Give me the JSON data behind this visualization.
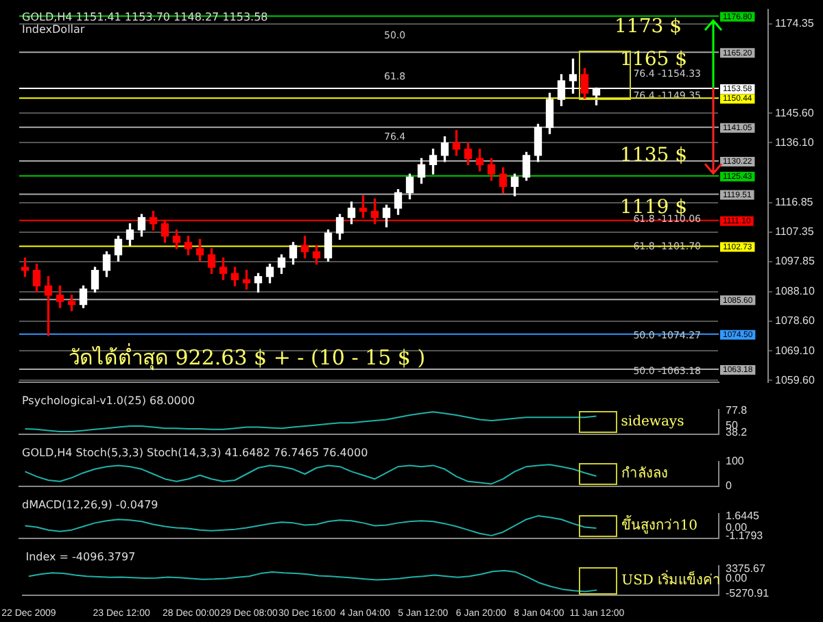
{
  "chart_data": [
    {
      "type": "candlestick",
      "title": "GOLD,H4 1151.41 1153.70 1148.27 1153.58",
      "subtitle": "IndexDollar",
      "categories": [
        "22 Dec 2009",
        null,
        null,
        null,
        null,
        null,
        null,
        null,
        "23 Dec 12:00",
        null,
        null,
        null,
        null,
        null,
        "28 Dec 00:00",
        null,
        null,
        null,
        null,
        "29 Dec 08:00",
        null,
        null,
        null,
        null,
        "30 Dec 16:00",
        null,
        null,
        null,
        null,
        "4 Jan 04:00",
        null,
        null,
        null,
        null,
        "5 Jan 12:00",
        null,
        null,
        null,
        null,
        "6 Jan 20:00",
        null,
        null,
        null,
        null,
        "8 Jan 04:00",
        null,
        null,
        null,
        null,
        "11 Jan 12:00",
        null,
        null,
        null,
        null,
        null,
        null,
        null,
        null,
        null,
        null
      ],
      "ohlc": [
        [
          1096,
          1099,
          1093,
          1095
        ],
        [
          1095,
          1097,
          1088,
          1090
        ],
        [
          1090,
          1093,
          1074,
          1087
        ],
        [
          1087,
          1090,
          1083,
          1085
        ],
        [
          1085,
          1087,
          1082,
          1084
        ],
        [
          1084,
          1090,
          1083,
          1089
        ],
        [
          1089,
          1096,
          1088,
          1095
        ],
        [
          1095,
          1101,
          1093,
          1100
        ],
        [
          1100,
          1106,
          1098,
          1105
        ],
        [
          1105,
          1110,
          1103,
          1108
        ],
        [
          1108,
          1113,
          1106,
          1112
        ],
        [
          1112,
          1114,
          1108,
          1110
        ],
        [
          1110,
          1111,
          1104,
          1106
        ],
        [
          1106,
          1108,
          1102,
          1104
        ],
        [
          1104,
          1106,
          1100,
          1102
        ],
        [
          1102,
          1105,
          1098,
          1100
        ],
        [
          1100,
          1102,
          1094,
          1096
        ],
        [
          1096,
          1099,
          1092,
          1094
        ],
        [
          1094,
          1096,
          1090,
          1092
        ],
        [
          1092,
          1095,
          1089,
          1091
        ],
        [
          1091,
          1094,
          1088,
          1093
        ],
        [
          1093,
          1097,
          1091,
          1096
        ],
        [
          1096,
          1100,
          1094,
          1099
        ],
        [
          1099,
          1104,
          1097,
          1103
        ],
        [
          1103,
          1106,
          1099,
          1101
        ],
        [
          1101,
          1103,
          1097,
          1099
        ],
        [
          1099,
          1108,
          1098,
          1107
        ],
        [
          1107,
          1113,
          1105,
          1112
        ],
        [
          1112,
          1117,
          1110,
          1115
        ],
        [
          1115,
          1119,
          1112,
          1114
        ],
        [
          1114,
          1118,
          1110,
          1112
        ],
        [
          1112,
          1116,
          1109,
          1115
        ],
        [
          1115,
          1121,
          1113,
          1120
        ],
        [
          1120,
          1126,
          1118,
          1125
        ],
        [
          1125,
          1131,
          1123,
          1129
        ],
        [
          1129,
          1134,
          1126,
          1132
        ],
        [
          1132,
          1138,
          1130,
          1136
        ],
        [
          1136,
          1140,
          1132,
          1134
        ],
        [
          1134,
          1136,
          1129,
          1131
        ],
        [
          1131,
          1134,
          1127,
          1129
        ],
        [
          1129,
          1131,
          1124,
          1126
        ],
        [
          1126,
          1128,
          1120,
          1122
        ],
        [
          1122,
          1126,
          1119,
          1125
        ],
        [
          1125,
          1133,
          1124,
          1132
        ],
        [
          1132,
          1142,
          1130,
          1141
        ],
        [
          1141,
          1152,
          1139,
          1150
        ],
        [
          1150,
          1158,
          1148,
          1156
        ],
        [
          1156,
          1163,
          1152,
          1158
        ],
        [
          1158,
          1160,
          1150,
          1152
        ],
        [
          1151.41,
          1153.7,
          1148.27,
          1153.58
        ],
        null,
        null,
        null,
        null,
        null,
        null,
        null,
        null,
        null,
        null
      ],
      "colors": [
        "#ff0000",
        "#ff0000",
        "#ff0000",
        "#ff0000",
        "#ff0000",
        "#ffffff",
        "#ffffff",
        "#ffffff",
        "#ffffff",
        "#ffffff",
        "#ffffff",
        "#ff0000",
        "#ff0000",
        "#ff0000",
        "#ff0000",
        "#ff0000",
        "#ff0000",
        "#ff0000",
        "#ff0000",
        "#ff0000",
        "#ffffff",
        "#ffffff",
        "#ffffff",
        "#ffffff",
        "#ff0000",
        "#ff0000",
        "#ffffff",
        "#ffffff",
        "#ffffff",
        "#ff0000",
        "#ff0000",
        "#ffffff",
        "#ffffff",
        "#ffffff",
        "#ffffff",
        "#ffffff",
        "#ffffff",
        "#ff0000",
        "#ff0000",
        "#ff0000",
        "#ff0000",
        "#ff0000",
        "#ffffff",
        "#ffffff",
        "#ffffff",
        "#ffffff",
        "#ffffff",
        "#ffffff",
        "#ff0000",
        "#ffffff",
        null,
        null,
        null,
        null,
        null,
        null,
        null,
        null,
        null,
        null
      ],
      "ylim": [
        1059,
        1179
      ],
      "yticks": [
        {
          "value": 1059.6,
          "label": "1059.60"
        },
        {
          "value": 1069.1,
          "label": "1069.10"
        },
        {
          "value": 1078.6,
          "label": "1078.60"
        },
        {
          "value": 1088.1,
          "label": "1088.10"
        },
        1097.85,
        1107.35,
        1116.85,
        {
          "value": 1136.1,
          "label": "1136.10"
        },
        {
          "value": 1145.6,
          "label": "1145.60"
        },
        1174.35
      ],
      "grid": "y",
      "tick_labels": "y",
      "ref_lines": [
        {
          "axis": "y",
          "value": 1176.8,
          "label": "1176.80",
          "color": "#00cc00"
        },
        {
          "axis": "y",
          "value": 1165.2,
          "label": "1165.20",
          "color": "#aaaaaa"
        },
        {
          "axis": "y",
          "value": 1153.58,
          "label": "1153.58",
          "color": "#ffffff"
        },
        {
          "axis": "y",
          "value": 1150.44,
          "label": "1150.44",
          "color": "#ffff00"
        },
        {
          "axis": "y",
          "value": 1141.05,
          "label": "1141.05",
          "color": "#aaaaaa"
        },
        {
          "axis": "y",
          "value": 1130.22,
          "label": "1130.22",
          "color": "#aaaaaa"
        },
        {
          "axis": "y",
          "value": 1125.43,
          "label": "1125.43",
          "color": "#00cc00"
        },
        {
          "axis": "y",
          "value": 1119.51,
          "label": "1119.51",
          "color": "#aaaaaa"
        },
        {
          "axis": "y",
          "value": 1111.1,
          "label": "1111.10",
          "color": "#ff0000"
        },
        {
          "axis": "y",
          "value": 1102.73,
          "label": "1102.73",
          "color": "#ffff00"
        },
        {
          "axis": "y",
          "value": 1085.6,
          "label": "1085.60",
          "color": "#aaaaaa"
        },
        {
          "axis": "y",
          "value": 1074.5,
          "label": "1074.50",
          "color": "#3399ff"
        },
        {
          "axis": "y",
          "value": 1063.18,
          "label": "1063.18",
          "color": "#aaaaaa"
        }
      ],
      "annotations": [
        "1173 $",
        "1165 $",
        "1135 $",
        "1119 $",
        "76.4 -1154.33",
        "76.4 -1149.35",
        "61.8 -1110.06",
        "61.8 -1101.70",
        "50.0 -1074.27",
        "50.0 -1063.18",
        "50.0",
        "61.8",
        "76.4",
        "วัดได้ต่ำสุด 922.63 $ + - (10 - 15 $ )"
      ]
    },
    {
      "type": "line",
      "title": "Psychological-v1.0(25) 68.0000",
      "ylim": [
        35,
        80
      ],
      "yticks": [
        38.2,
        50,
        77.8
      ],
      "tick_labels": "y",
      "marker": "none",
      "series": [
        {
          "color": "#20b2aa",
          "values": [
            45,
            44,
            42,
            40,
            40,
            42,
            44,
            46,
            48,
            50,
            50,
            48,
            46,
            46,
            45,
            45,
            44,
            44,
            46,
            48,
            48,
            47,
            46,
            48,
            50,
            52,
            54,
            56,
            56,
            58,
            60,
            62,
            66,
            70,
            73,
            76,
            73,
            70,
            66,
            62,
            60,
            62,
            64,
            66,
            66,
            66,
            66,
            66,
            66,
            68,
            null,
            null,
            null,
            null,
            null,
            null,
            null,
            null,
            null,
            null
          ]
        }
      ],
      "annotations": [
        "sideways"
      ]
    },
    {
      "type": "line",
      "title": "GOLD,H4 Stoch(5,3,3) Stoch(14,3,3) 41.6482 76.7465 76.4000",
      "ylim": [
        0,
        100
      ],
      "yticks": [
        0,
        100
      ],
      "tick_labels": "y",
      "marker": "none",
      "series": [
        {
          "color": "#20b2aa",
          "values": [
            60,
            40,
            25,
            20,
            35,
            55,
            70,
            80,
            85,
            80,
            70,
            50,
            30,
            20,
            30,
            45,
            30,
            20,
            25,
            50,
            75,
            85,
            80,
            70,
            50,
            75,
            85,
            80,
            60,
            45,
            30,
            55,
            80,
            85,
            80,
            85,
            70,
            40,
            20,
            15,
            10,
            30,
            60,
            80,
            85,
            88,
            80,
            70,
            55,
            41.6482,
            null,
            null,
            null,
            null,
            null,
            null,
            null,
            null,
            null,
            null
          ]
        }
      ],
      "annotations": [
        "กำลังลง"
      ]
    },
    {
      "type": "line",
      "title": "dMACD(12,26,9) -0.0479",
      "ylim": [
        -1.5,
        2
      ],
      "yticks": [
        -1.1793,
        {
          "value": 0,
          "label": "0.00"
        },
        1.6445
      ],
      "tick_labels": "y",
      "marker": "none",
      "series": [
        {
          "color": "#20b2aa",
          "values": [
            0.3,
            0.1,
            -0.3,
            -0.5,
            -0.3,
            0.2,
            0.7,
            1.0,
            1.2,
            1.1,
            0.9,
            0.5,
            0.2,
            0,
            -0.1,
            -0.3,
            -0.4,
            -0.3,
            -0.2,
            0,
            0.3,
            0.6,
            0.8,
            0.7,
            0.4,
            0.5,
            0.9,
            1.1,
            1.0,
            0.7,
            0.3,
            0.4,
            0.7,
            0.9,
            1.0,
            0.9,
            0.6,
            0.2,
            -0.3,
            -0.8,
            -1.1,
            -0.6,
            0.3,
            1.2,
            1.7,
            1.5,
            1.2,
            0.6,
            0.1,
            -0.0479,
            null,
            null,
            null,
            null,
            null,
            null,
            null,
            null,
            null,
            null
          ]
        }
      ],
      "annotations": [
        "ขึ้นสูงกว่า10"
      ]
    },
    {
      "type": "line",
      "title": "Index = -4096.3797",
      "ylim": [
        -6000,
        4500
      ],
      "yticks": [
        -5270.91,
        {
          "value": 0,
          "label": "0.00"
        },
        3375.67
      ],
      "marker": "none",
      "series": [
        {
          "color": "#20b2aa",
          "values": [
            800,
            1500,
            2000,
            1800,
            1200,
            800,
            600,
            400,
            500,
            300,
            100,
            200,
            500,
            300,
            0,
            -300,
            -200,
            0,
            400,
            800,
            1800,
            2300,
            2000,
            1800,
            1500,
            1000,
            800,
            500,
            200,
            -200,
            -500,
            -300,
            0,
            500,
            800,
            1200,
            800,
            400,
            800,
            1500,
            2500,
            2800,
            2300,
            500,
            -1500,
            -2800,
            -3800,
            -4300,
            -4600,
            -4096.3797,
            null,
            null,
            null,
            null,
            null,
            null,
            null,
            null,
            null,
            null
          ]
        }
      ],
      "annotations": [
        "USD เริ่มแข็งค่า"
      ]
    }
  ]
}
